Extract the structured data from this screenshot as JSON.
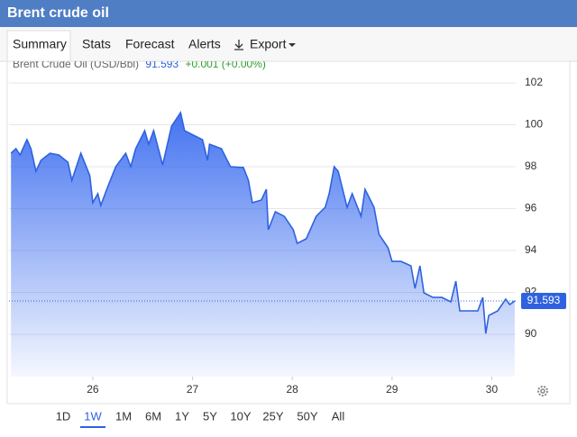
{
  "header": {
    "title": "Brent crude oil"
  },
  "tabs": [
    "Summary",
    "Stats",
    "Forecast",
    "Alerts",
    "Export"
  ],
  "ranges": [
    "1D",
    "1W",
    "1M",
    "6M",
    "1Y",
    "5Y",
    "10Y",
    "25Y",
    "50Y",
    "All"
  ],
  "chart_data": {
    "type": "area",
    "legend": {
      "name": "Brent Crude Oil (USD/Bbl)",
      "last": "91.593",
      "change": "+0.001 (+0.00%)"
    },
    "x": [
      25.18,
      25.23,
      25.27,
      25.34,
      25.38,
      25.43,
      25.48,
      25.57,
      25.66,
      25.75,
      25.79,
      25.88,
      25.97,
      26.0,
      26.05,
      26.08,
      26.14,
      26.23,
      26.33,
      26.38,
      26.43,
      26.52,
      26.56,
      26.61,
      26.7,
      26.79,
      26.88,
      26.92,
      27.01,
      27.1,
      27.15,
      27.17,
      27.29,
      27.38,
      27.51,
      27.56,
      27.6,
      27.69,
      27.74,
      27.76,
      27.83,
      27.92,
      28.01,
      28.05,
      28.14,
      28.24,
      28.33,
      28.37,
      28.42,
      28.46,
      28.55,
      28.6,
      28.69,
      28.73,
      28.82,
      28.87,
      28.96,
      29.0,
      29.09,
      29.19,
      29.23,
      29.28,
      29.32,
      29.41,
      29.5,
      29.59,
      29.64,
      29.68,
      29.77,
      29.86,
      29.91,
      29.94,
      29.97,
      30.06,
      30.14,
      30.18,
      30.23
    ],
    "series": [
      {
        "name": "Brent Crude Oil (USD/Bbl)",
        "color": "#2f62e0",
        "values": [
          98.64,
          98.86,
          98.56,
          99.29,
          98.86,
          97.78,
          98.3,
          98.64,
          98.56,
          98.21,
          97.35,
          98.64,
          97.57,
          96.28,
          96.71,
          96.15,
          96.92,
          98.0,
          98.64,
          98.0,
          98.86,
          99.72,
          99.07,
          99.72,
          98.08,
          99.93,
          100.58,
          99.72,
          99.5,
          99.29,
          98.3,
          99.07,
          98.86,
          98.0,
          97.96,
          97.35,
          96.28,
          96.41,
          96.92,
          94.99,
          95.85,
          95.63,
          94.99,
          94.34,
          94.56,
          95.63,
          96.06,
          96.71,
          98.0,
          97.78,
          96.06,
          96.71,
          95.63,
          96.92,
          96.06,
          94.77,
          94.13,
          93.48,
          93.48,
          93.27,
          92.19,
          93.27,
          91.98,
          91.76,
          91.76,
          91.55,
          92.54,
          91.12,
          91.12,
          91.12,
          91.76,
          90.04,
          90.9,
          91.12,
          91.68,
          91.42,
          91.593
        ]
      }
    ],
    "xlim": [
      25.16,
      30.24
    ],
    "xticks": [
      26,
      27,
      28,
      29,
      30
    ],
    "ylim": [
      87.98,
      102.73
    ],
    "yticks": [
      90,
      92,
      94,
      96,
      98,
      100,
      102
    ],
    "grid": true
  }
}
